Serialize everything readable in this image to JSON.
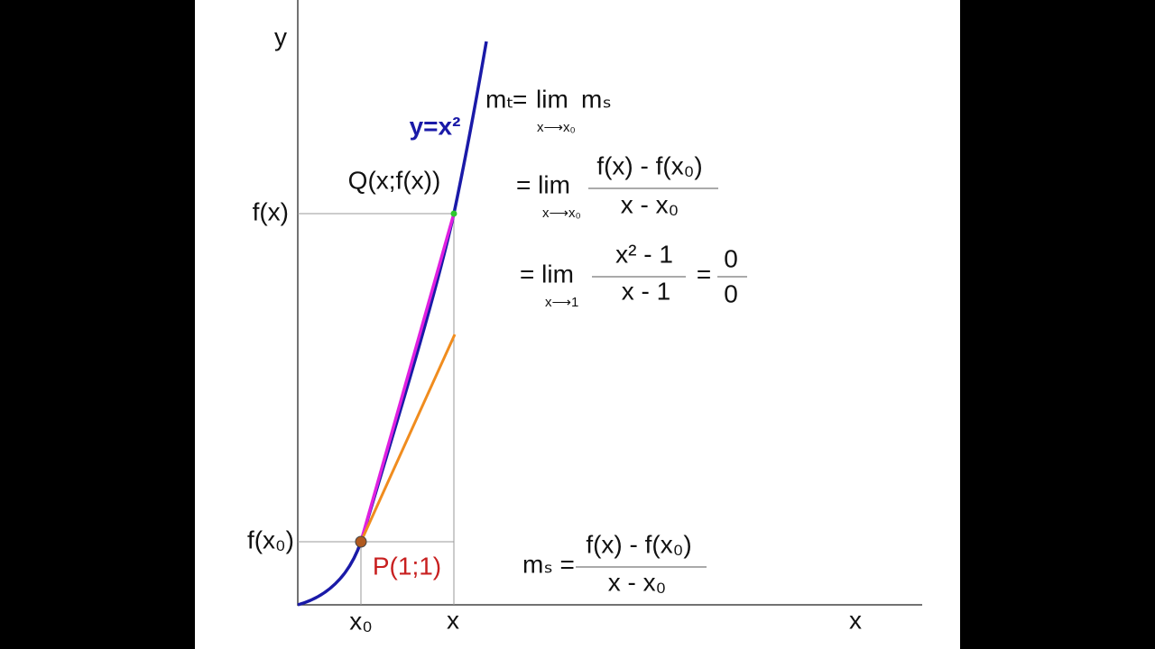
{
  "axes": {
    "y_label": "y",
    "x_label": "x"
  },
  "ticks": {
    "x0": "x₀",
    "x": "x",
    "fx": "f(x)",
    "fx0": "f(x₀)"
  },
  "curve_label": "y=x²",
  "points": {
    "q": "Q(x;f(x))",
    "p": "P(1;1)"
  },
  "formulas": {
    "line1": {
      "left": "mₜ",
      "eq": "=",
      "lim": "lim",
      "right": "mₛ",
      "under": "x⟶x₀"
    },
    "line2": {
      "eq": "= lim",
      "under": "x⟶x₀",
      "num": "f(x) - f(x₀)",
      "den": "x - x₀"
    },
    "line3": {
      "eq": "= lim",
      "under": "x⟶1",
      "num": "x² - 1",
      "den": "x - 1",
      "eq2": "=",
      "num2": "0",
      "den2": "0"
    },
    "line4": {
      "left": "mₛ =",
      "num": "f(x) - f(x₀)",
      "den": "x - x₀"
    }
  }
}
